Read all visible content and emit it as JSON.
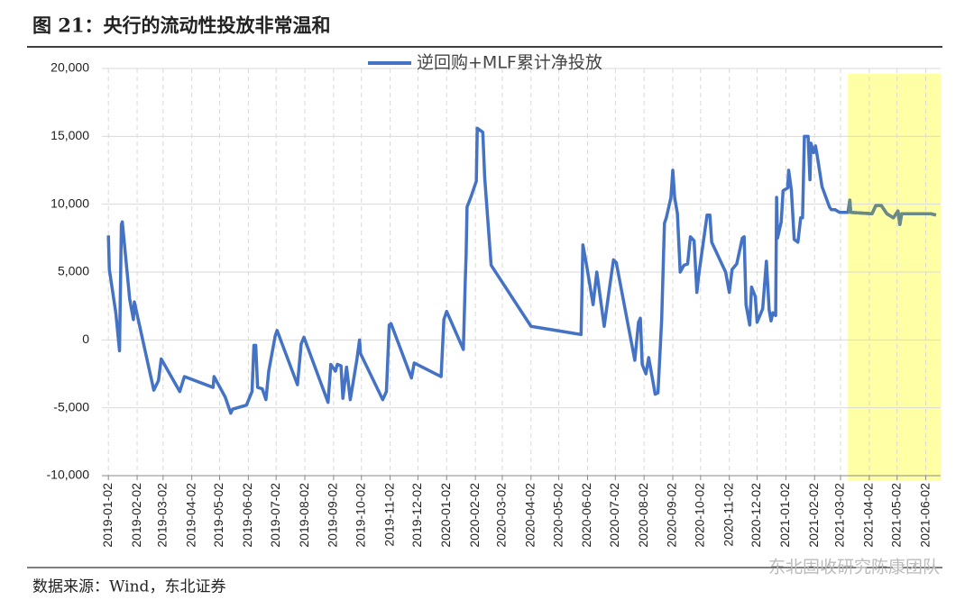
{
  "chart_data": {
    "type": "line",
    "title": "图 21：央行的流动性投放非常温和",
    "source": "数据来源：Wind，东北证券",
    "watermark": "东北固收研究陈康团队",
    "legend": "upper center",
    "grid": true,
    "xlim": [
      "2018-12-26",
      "2021-06-18"
    ],
    "xticks": [
      "2019-01-02",
      "2019-02-02",
      "2019-03-02",
      "2019-04-02",
      "2019-05-02",
      "2019-06-02",
      "2019-07-02",
      "2019-08-02",
      "2019-09-02",
      "2019-10-02",
      "2019-11-02",
      "2019-12-02",
      "2020-01-02",
      "2020-02-02",
      "2020-03-02",
      "2020-04-02",
      "2020-05-02",
      "2020-06-02",
      "2020-07-02",
      "2020-08-02",
      "2020-09-02",
      "2020-10-02",
      "2020-11-02",
      "2020-12-02",
      "2021-01-02",
      "2021-02-02",
      "2021-03-02",
      "2021-04-02",
      "2021-05-02",
      "2021-06-02"
    ],
    "ylim": [
      -10000,
      20000
    ],
    "yticks": [
      {
        "value": -10000,
        "label": "-10,000"
      },
      {
        "value": -5000,
        "label": "-5,000"
      },
      0,
      {
        "value": 5000,
        "label": "5,000"
      },
      {
        "value": 10000,
        "label": "10,000"
      },
      {
        "value": 15000,
        "label": "15,000"
      },
      {
        "value": 20000,
        "label": "20,000"
      }
    ],
    "highlight": {
      "xlim": [
        "2021-03-10",
        "2021-06-18"
      ],
      "fill": "#ffffa6",
      "line_color": "#6b8a86"
    },
    "x": [
      "2019-01-02",
      "2019-01-03",
      "2019-01-10",
      "2019-01-14",
      "2019-01-16",
      "2019-01-17",
      "2019-01-25",
      "2019-01-29",
      "2019-01-30",
      "2019-02-20",
      "2019-02-25",
      "2019-02-28",
      "2019-03-20",
      "2019-03-25",
      "2019-04-25",
      "2019-04-26",
      "2019-05-08",
      "2019-05-14",
      "2019-05-16",
      "2019-05-31",
      "2019-06-06",
      "2019-06-08",
      "2019-06-10",
      "2019-06-12",
      "2019-06-17",
      "2019-06-21",
      "2019-06-24",
      "2019-07-01",
      "2019-07-03",
      "2019-07-25",
      "2019-07-29",
      "2019-08-01",
      "2019-08-27",
      "2019-08-30",
      "2019-09-04",
      "2019-09-06",
      "2019-09-10",
      "2019-09-12",
      "2019-09-16",
      "2019-09-20",
      "2019-09-27",
      "2019-09-30",
      "2019-10-01",
      "2019-10-25",
      "2019-10-29",
      "2019-11-01",
      "2019-11-03",
      "2019-11-25",
      "2019-11-28",
      "2019-12-27",
      "2019-12-30",
      "2020-01-02",
      "2020-01-20",
      "2020-01-22",
      "2020-01-23",
      "2020-01-24",
      "2020-01-28",
      "2020-02-03",
      "2020-02-04",
      "2020-02-06",
      "2020-02-10",
      "2020-02-12",
      "2020-02-19",
      "2020-04-02",
      "2020-05-26",
      "2020-05-28",
      "2020-06-01",
      "2020-06-08",
      "2020-06-12",
      "2020-06-20",
      "2020-06-25",
      "2020-06-30",
      "2020-07-03",
      "2020-07-23",
      "2020-07-27",
      "2020-07-29",
      "2020-07-31",
      "2020-08-04",
      "2020-08-07",
      "2020-08-14",
      "2020-08-17",
      "2020-08-21",
      "2020-08-24",
      "2020-08-26",
      "2020-08-31",
      "2020-09-02",
      "2020-09-04",
      "2020-09-07",
      "2020-09-10",
      "2020-09-14",
      "2020-09-18",
      "2020-09-21",
      "2020-09-25",
      "2020-09-28",
      "2020-09-30",
      "2020-10-09",
      "2020-10-12",
      "2020-10-14",
      "2020-10-29",
      "2020-11-02",
      "2020-11-05",
      "2020-11-10",
      "2020-11-16",
      "2020-11-18",
      "2020-11-20",
      "2020-11-24",
      "2020-11-26",
      "2020-11-30",
      "2020-12-02",
      "2020-12-08",
      "2020-12-12",
      "2020-12-15",
      "2020-12-17",
      "2020-12-19",
      "2020-12-22",
      "2020-12-23",
      "2020-12-24",
      "2020-12-28",
      "2020-12-30",
      "2021-01-04",
      "2021-01-05",
      "2021-01-08",
      "2021-01-11",
      "2021-01-15",
      "2021-01-18",
      "2021-01-20",
      "2021-01-22",
      "2021-01-26",
      "2021-01-28",
      "2021-01-29",
      "2021-02-01",
      "2021-02-03",
      "2021-02-05",
      "2021-02-10",
      "2021-02-18",
      "2021-02-20",
      "2021-02-24",
      "2021-03-01",
      "2021-03-10",
      "2021-03-12",
      "2021-03-13",
      "2021-04-05",
      "2021-04-09",
      "2021-04-15",
      "2021-04-21",
      "2021-04-28",
      "2021-05-03",
      "2021-05-05",
      "2021-05-07",
      "2021-06-07",
      "2021-06-13"
    ],
    "series": [
      {
        "name": "逆回购+MLF累计净投放",
        "color": "#4472c4",
        "values": [
          7700,
          5200,
          2000,
          -800,
          8500,
          8700,
          3000,
          1500,
          2800,
          -3700,
          -3000,
          -1400,
          -3800,
          -2700,
          -3500,
          -2700,
          -4200,
          -5400,
          -5100,
          -4800,
          -3800,
          -400,
          -400,
          -3500,
          -3600,
          -4400,
          -2300,
          300,
          700,
          -3300,
          -300,
          200,
          -4600,
          -1800,
          -2300,
          -1800,
          -1900,
          -4300,
          -2000,
          -4400,
          -1500,
          0,
          -1000,
          -4400,
          -3800,
          1100,
          1200,
          -2800,
          -1700,
          -2700,
          1500,
          2100,
          -700,
          4200,
          6300,
          9800,
          10500,
          11700,
          15600,
          15500,
          15300,
          12000,
          5500,
          1000,
          400,
          7000,
          5500,
          2600,
          5000,
          1000,
          3500,
          5900,
          5700,
          -1500,
          1300,
          1600,
          -1800,
          -2500,
          -1300,
          -4000,
          -3900,
          1500,
          8600,
          9000,
          10500,
          12500,
          10500,
          9300,
          5000,
          5500,
          5600,
          7600,
          7300,
          3500,
          4800,
          9200,
          9200,
          7200,
          5000,
          3500,
          5200,
          5600,
          7500,
          7600,
          2600,
          1100,
          3900,
          3200,
          1300,
          2300,
          5800,
          2200,
          1400,
          2000,
          1800,
          10500,
          7500,
          8700,
          11000,
          11200,
          12500,
          11000,
          7400,
          7200,
          9000,
          9000,
          15000,
          15000,
          11800,
          14500,
          13800,
          14300,
          13500,
          11300,
          9800,
          9600,
          9600,
          9400,
          9400,
          10300,
          9400,
          9300,
          9900,
          9900,
          9300,
          9000,
          9500,
          8500,
          9300,
          9300,
          9200
        ]
      }
    ]
  }
}
